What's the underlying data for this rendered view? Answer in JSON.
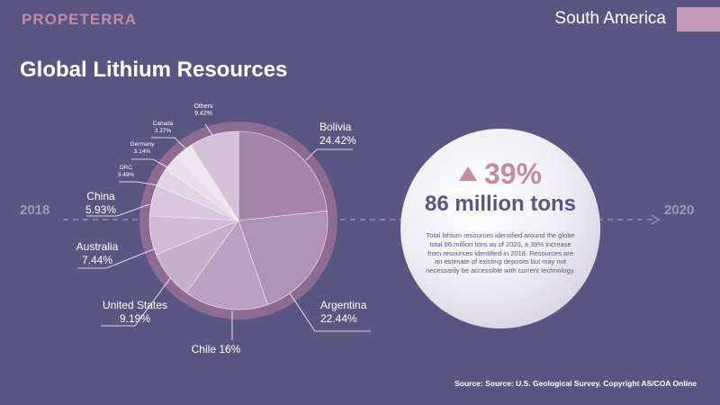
{
  "header": {
    "logo": "PROPETERRA",
    "region": "South America",
    "swatch_color": "#c39bb8"
  },
  "title": "Global Lithium Resources",
  "timeline": {
    "start_year": "2018",
    "end_year": "2020"
  },
  "highlight": {
    "change": "39%",
    "total": "86 million tons",
    "description": "Total lithium resources identified around the globe total 86 million tons as of 2020, a 39% increase from resources identified in 2018. Resources are an estimate of existing deposits but may not necessarily be accessible with current technology."
  },
  "source": "Source: Source: U.S. Geological Survey. Copyright AS/COA Online",
  "chart_data": {
    "type": "pie",
    "title": "",
    "slices": [
      {
        "label": "Bolivia",
        "value": 24.42,
        "value_label": "24.42%",
        "color": "#a585a9"
      },
      {
        "label": "Argentina",
        "value": 22.44,
        "value_label": "22.44%",
        "color": "#b192b7"
      },
      {
        "label": "Chile",
        "value": 16,
        "value_label": "16%",
        "color": "#bd9fc3"
      },
      {
        "label": "United States",
        "value": 9.19,
        "value_label": "9.19%",
        "color": "#c8afcd"
      },
      {
        "label": "Australia",
        "value": 7.44,
        "value_label": "7.44%",
        "color": "#d0bad5"
      },
      {
        "label": "China",
        "value": 5.93,
        "value_label": "5.93%",
        "color": "#d9c7dd"
      },
      {
        "label": "DRC",
        "value": 3.49,
        "value_label": "3.49%",
        "color": "#e1d3e5"
      },
      {
        "label": "Germany",
        "value": 3.14,
        "value_label": "3.14%",
        "color": "#e9dfec"
      },
      {
        "label": "Canada",
        "value": 3.37,
        "value_label": "3.37%",
        "color": "#ede6ef"
      },
      {
        "label": "Others",
        "value": 9.42,
        "value_label": "9.42%",
        "color": "#d4c0d9"
      }
    ],
    "ring_color": "#8e6b93",
    "leader_color": "#ffffff"
  }
}
